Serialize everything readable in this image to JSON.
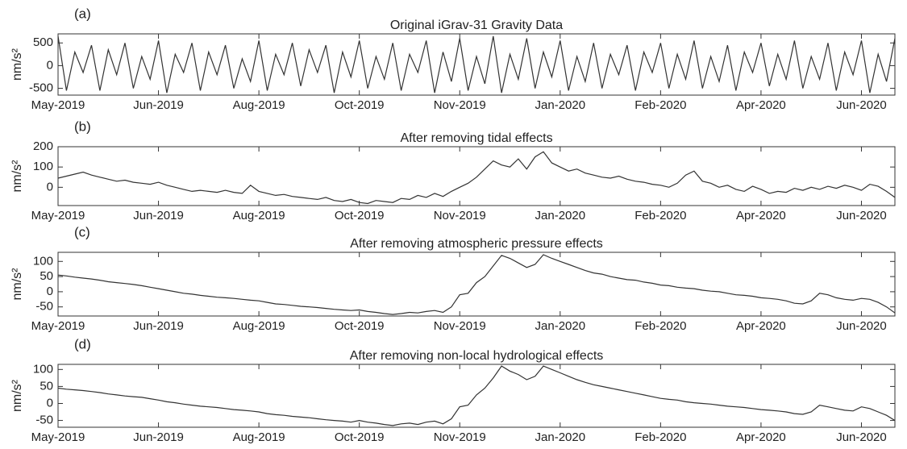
{
  "chart_data": [
    {
      "type": "line",
      "panel": "(a)",
      "title": "Original iGrav-31 Gravity Data",
      "y_label": "nm/s²",
      "color": "#333333",
      "categories": [
        "May-2019",
        null,
        null,
        null,
        null,
        null,
        null,
        null,
        null,
        null,
        null,
        null,
        "Jun-2019",
        null,
        null,
        null,
        null,
        null,
        null,
        null,
        null,
        null,
        null,
        null,
        "Aug-2019",
        null,
        null,
        null,
        null,
        null,
        null,
        null,
        null,
        null,
        null,
        null,
        "Oct-2019",
        null,
        null,
        null,
        null,
        null,
        null,
        null,
        null,
        null,
        null,
        null,
        "Nov-2019",
        null,
        null,
        null,
        null,
        null,
        null,
        null,
        null,
        null,
        null,
        null,
        "Jan-2020",
        null,
        null,
        null,
        null,
        null,
        null,
        null,
        null,
        null,
        null,
        null,
        "Feb-2020",
        null,
        null,
        null,
        null,
        null,
        null,
        null,
        null,
        null,
        null,
        null,
        "Apr-2020",
        null,
        null,
        null,
        null,
        null,
        null,
        null,
        null,
        null,
        null,
        null,
        "Jun-2020",
        null,
        null,
        null,
        null
      ],
      "values": [
        650,
        -550,
        300,
        -150,
        450,
        -550,
        350,
        -200,
        500,
        -500,
        200,
        -300,
        550,
        -600,
        250,
        -150,
        500,
        -550,
        300,
        -200,
        450,
        -500,
        150,
        -350,
        550,
        -550,
        250,
        -200,
        500,
        -450,
        350,
        -150,
        450,
        -600,
        300,
        -250,
        550,
        -500,
        200,
        -300,
        500,
        -550,
        250,
        -150,
        550,
        -600,
        300,
        -350,
        600,
        -550,
        200,
        -400,
        650,
        -600,
        250,
        -300,
        600,
        -500,
        300,
        -250,
        550,
        -550,
        200,
        -350,
        500,
        -500,
        250,
        -200,
        450,
        -550,
        300,
        -150,
        500,
        -500,
        250,
        -300,
        550,
        -500,
        200,
        -350,
        450,
        -550,
        300,
        -150,
        500,
        -450,
        250,
        -300,
        550,
        -500,
        200,
        -300,
        500,
        -550,
        300,
        -200,
        550,
        -600,
        250,
        -350,
        600
      ],
      "ylim": [
        -650,
        700
      ],
      "yticks": [
        -500,
        0,
        500
      ]
    },
    {
      "type": "line",
      "panel": "(b)",
      "title": "After removing tidal effects",
      "y_label": "nm/s²",
      "color": "#333333",
      "categories": [
        "May-2019",
        null,
        null,
        null,
        null,
        null,
        null,
        null,
        null,
        null,
        null,
        null,
        "Jun-2019",
        null,
        null,
        null,
        null,
        null,
        null,
        null,
        null,
        null,
        null,
        null,
        "Aug-2019",
        null,
        null,
        null,
        null,
        null,
        null,
        null,
        null,
        null,
        null,
        null,
        "Oct-2019",
        null,
        null,
        null,
        null,
        null,
        null,
        null,
        null,
        null,
        null,
        null,
        "Nov-2019",
        null,
        null,
        null,
        null,
        null,
        null,
        null,
        null,
        null,
        null,
        null,
        "Jan-2020",
        null,
        null,
        null,
        null,
        null,
        null,
        null,
        null,
        null,
        null,
        null,
        "Feb-2020",
        null,
        null,
        null,
        null,
        null,
        null,
        null,
        null,
        null,
        null,
        null,
        "Apr-2020",
        null,
        null,
        null,
        null,
        null,
        null,
        null,
        null,
        null,
        null,
        null,
        "Jun-2020",
        null,
        null,
        null,
        null
      ],
      "values": [
        45,
        55,
        65,
        75,
        60,
        50,
        40,
        30,
        35,
        25,
        20,
        15,
        25,
        10,
        0,
        -10,
        -20,
        -15,
        -20,
        -25,
        -15,
        -25,
        -30,
        10,
        -20,
        -30,
        -40,
        -35,
        -45,
        -50,
        -55,
        -60,
        -50,
        -65,
        -70,
        -60,
        -75,
        -80,
        -65,
        -70,
        -75,
        -55,
        -60,
        -40,
        -50,
        -30,
        -45,
        -20,
        0,
        20,
        50,
        90,
        130,
        110,
        100,
        140,
        90,
        150,
        175,
        120,
        100,
        80,
        90,
        70,
        60,
        50,
        45,
        55,
        40,
        30,
        25,
        15,
        10,
        0,
        20,
        60,
        80,
        30,
        20,
        0,
        10,
        -10,
        -20,
        5,
        -10,
        -30,
        -20,
        -25,
        -5,
        -15,
        0,
        -10,
        5,
        -5,
        10,
        0,
        -15,
        15,
        5,
        -20,
        -50
      ],
      "ylim": [
        -90,
        200
      ],
      "yticks": [
        0,
        100,
        200
      ]
    },
    {
      "type": "line",
      "panel": "(c)",
      "title": "After removing atmospheric pressure effects",
      "y_label": "nm/s²",
      "color": "#333333",
      "categories": [
        "May-2019",
        null,
        null,
        null,
        null,
        null,
        null,
        null,
        null,
        null,
        null,
        null,
        "Jun-2019",
        null,
        null,
        null,
        null,
        null,
        null,
        null,
        null,
        null,
        null,
        null,
        "Aug-2019",
        null,
        null,
        null,
        null,
        null,
        null,
        null,
        null,
        null,
        null,
        null,
        "Oct-2019",
        null,
        null,
        null,
        null,
        null,
        null,
        null,
        null,
        null,
        null,
        null,
        "Nov-2019",
        null,
        null,
        null,
        null,
        null,
        null,
        null,
        null,
        null,
        null,
        null,
        "Jan-2020",
        null,
        null,
        null,
        null,
        null,
        null,
        null,
        null,
        null,
        null,
        null,
        "Feb-2020",
        null,
        null,
        null,
        null,
        null,
        null,
        null,
        null,
        null,
        null,
        null,
        "Apr-2020",
        null,
        null,
        null,
        null,
        null,
        null,
        null,
        null,
        null,
        null,
        null,
        "Jun-2020",
        null,
        null,
        null,
        null
      ],
      "values": [
        55,
        52,
        48,
        45,
        42,
        38,
        33,
        30,
        27,
        24,
        20,
        15,
        10,
        5,
        0,
        -5,
        -8,
        -12,
        -15,
        -18,
        -20,
        -22,
        -25,
        -28,
        -30,
        -35,
        -40,
        -42,
        -45,
        -48,
        -50,
        -52,
        -55,
        -58,
        -60,
        -62,
        -60,
        -65,
        -68,
        -72,
        -75,
        -72,
        -68,
        -70,
        -65,
        -62,
        -68,
        -50,
        -10,
        -5,
        30,
        50,
        85,
        120,
        110,
        95,
        80,
        90,
        122,
        110,
        100,
        90,
        80,
        70,
        62,
        58,
        50,
        45,
        40,
        38,
        32,
        28,
        22,
        20,
        15,
        12,
        10,
        5,
        2,
        0,
        -5,
        -10,
        -12,
        -15,
        -20,
        -22,
        -25,
        -30,
        -38,
        -40,
        -30,
        -5,
        -10,
        -20,
        -25,
        -28,
        -22,
        -25,
        -35,
        -50,
        -70
      ],
      "ylim": [
        -80,
        130
      ],
      "yticks": [
        -50,
        0,
        50,
        100
      ]
    },
    {
      "type": "line",
      "panel": "(d)",
      "title": "After removing non-local hydrological effects",
      "y_label": "nm/s²",
      "color": "#333333",
      "categories": [
        "May-2019",
        null,
        null,
        null,
        null,
        null,
        null,
        null,
        null,
        null,
        null,
        null,
        "Jun-2019",
        null,
        null,
        null,
        null,
        null,
        null,
        null,
        null,
        null,
        null,
        null,
        "Aug-2019",
        null,
        null,
        null,
        null,
        null,
        null,
        null,
        null,
        null,
        null,
        null,
        "Oct-2019",
        null,
        null,
        null,
        null,
        null,
        null,
        null,
        null,
        null,
        null,
        null,
        "Nov-2019",
        null,
        null,
        null,
        null,
        null,
        null,
        null,
        null,
        null,
        null,
        null,
        "Jan-2020",
        null,
        null,
        null,
        null,
        null,
        null,
        null,
        null,
        null,
        null,
        null,
        "Feb-2020",
        null,
        null,
        null,
        null,
        null,
        null,
        null,
        null,
        null,
        null,
        null,
        "Apr-2020",
        null,
        null,
        null,
        null,
        null,
        null,
        null,
        null,
        null,
        null,
        null,
        "Jun-2020",
        null,
        null,
        null,
        null
      ],
      "values": [
        45,
        42,
        40,
        38,
        35,
        32,
        28,
        25,
        22,
        20,
        18,
        14,
        10,
        5,
        2,
        -2,
        -5,
        -8,
        -10,
        -12,
        -15,
        -18,
        -20,
        -22,
        -25,
        -30,
        -33,
        -35,
        -38,
        -40,
        -42,
        -45,
        -48,
        -50,
        -52,
        -55,
        -50,
        -55,
        -58,
        -62,
        -65,
        -60,
        -58,
        -62,
        -55,
        -52,
        -60,
        -45,
        -10,
        -5,
        25,
        45,
        75,
        110,
        95,
        85,
        70,
        80,
        110,
        100,
        90,
        80,
        70,
        62,
        55,
        50,
        45,
        40,
        35,
        30,
        25,
        20,
        15,
        12,
        10,
        5,
        2,
        0,
        -2,
        -5,
        -8,
        -10,
        -12,
        -15,
        -18,
        -20,
        -22,
        -25,
        -30,
        -32,
        -25,
        -5,
        -10,
        -15,
        -20,
        -22,
        -10,
        -15,
        -25,
        -35,
        -50
      ],
      "ylim": [
        -70,
        115
      ],
      "yticks": [
        -50,
        0,
        50,
        100
      ]
    }
  ]
}
